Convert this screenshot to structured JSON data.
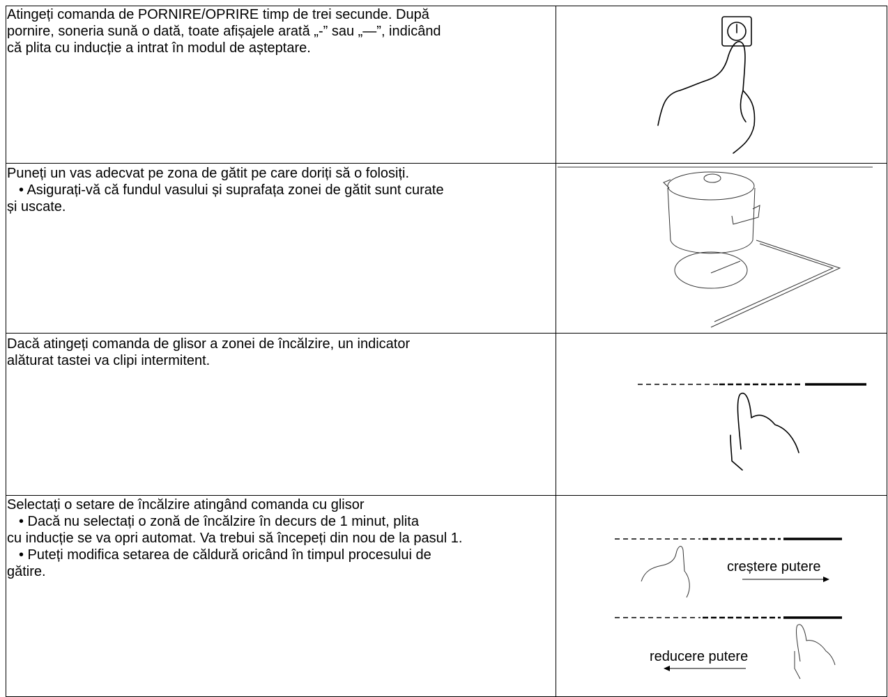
{
  "table": {
    "rows": [
      {
        "lines": [
          "Atingeți comanda de PORNIRE/OPRIRE timp de trei secunde. După",
          "pornire, soneria sună o dată, toate afișajele arată „-” sau „—”, indicând",
          "că plita cu inducție a intrat în modul de așteptare."
        ]
      },
      {
        "lines": [
          "Puneți un vas adecvat pe zona de gătit pe care doriți să o folosiți.",
          "• Asigurați-vă că fundul vasului și suprafața zonei de gătit sunt curate",
          "și uscate."
        ]
      },
      {
        "lines": [
          "Dacă atingeți comanda de glisor a zonei de încălzire, un indicator",
          "alăturat tastei va clipi intermitent."
        ]
      },
      {
        "lines": [
          "Selectați o setare de încălzire atingând comanda cu glisor",
          "• Dacă nu selectați o zonă de încălzire în decurs de 1 minut, plita",
          "cu inducție se va opri automat. Va trebui să începeți din nou de la pasul 1.",
          "• Puteți modifica setarea de căldură oricând în timpul procesului de",
          "gătire."
        ],
        "labels": [
          "creștere putere",
          "reducere putere"
        ]
      }
    ]
  }
}
